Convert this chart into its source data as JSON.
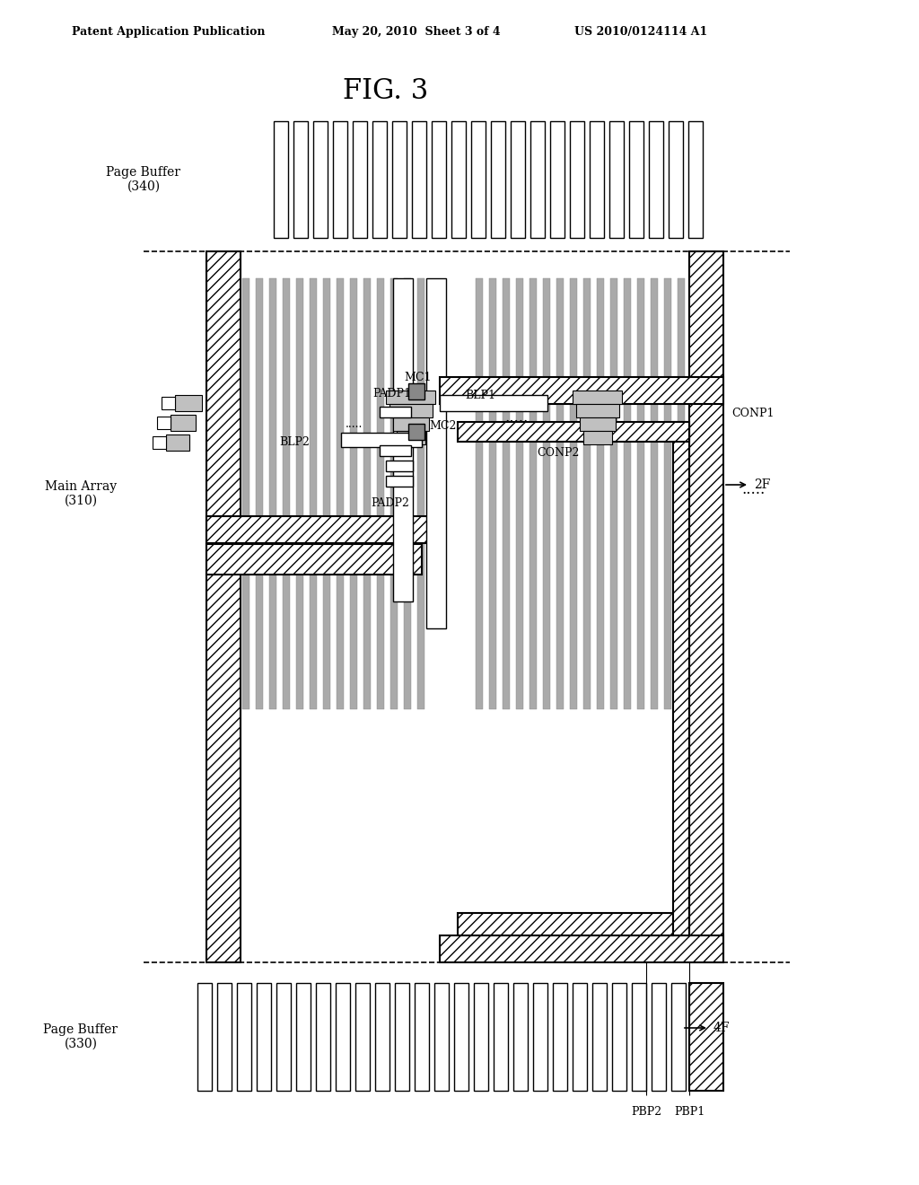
{
  "title": "FIG. 3",
  "header_left": "Patent Application Publication",
  "header_mid": "May 20, 2010  Sheet 3 of 4",
  "header_right": "US 2010/0124114 A1",
  "bg_color": "#ffffff",
  "page_buffer_340_label": "Page Buffer\n(340)",
  "page_buffer_330_label": "Page Buffer\n(330)",
  "main_array_label": "Main Array\n(310)",
  "label_2F": "2F",
  "label_4F": "4F",
  "label_MC1": "MC1",
  "label_MC2": "MC2",
  "label_PADP1": "PADP1",
  "label_PADP2": "PADP2",
  "label_BLP1": "BLP1",
  "label_BLP2": "BLP2",
  "label_CONP1": "CONP1",
  "label_CONP2": "CONP2",
  "label_PBP1": "PBP1",
  "label_PBP2": "PBP2",
  "label_dots": "....."
}
